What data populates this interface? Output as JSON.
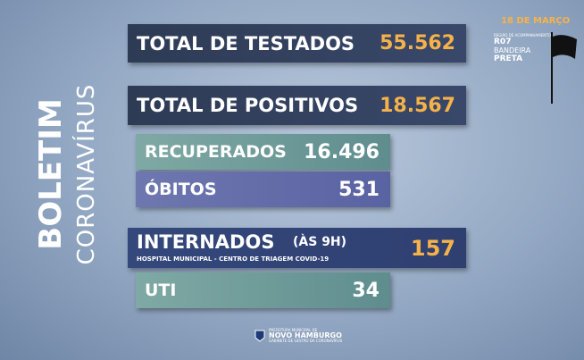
{
  "header": {
    "date": "18 DE MARÇO",
    "region_caption": "REGIÃO DE ACOMPANHAMENTO",
    "region": "R07",
    "flag_label": "BANDEIRA",
    "flag_color": "PRETA"
  },
  "side_title": {
    "line1": "BOLETIM",
    "line2": "CORONAVÍRUS"
  },
  "stats": {
    "tested": {
      "label": "TOTAL DE TESTADOS",
      "value": "55.562"
    },
    "positive": {
      "label": "TOTAL DE POSITIVOS",
      "value": "18.567"
    },
    "recovered": {
      "label": "RECUPERADOS",
      "value": "16.496"
    },
    "deaths": {
      "label": "ÓBITOS",
      "value": "531"
    },
    "hospitalized": {
      "label": "INTERNADOS",
      "note": "(ÀS 9H)",
      "value": "157",
      "subtitle": "HOSPITAL MUNICIPAL - CENTRO DE TRIAGEM COVID-19"
    },
    "icu": {
      "label": "UTI",
      "value": "34"
    }
  },
  "footer": {
    "line1": "PREFEITURA MUNICIPAL DE",
    "line2": "NOVO HAMBURGO",
    "line3": "GABINETE DE GESTÃO DA CORONAVÍRUS"
  }
}
